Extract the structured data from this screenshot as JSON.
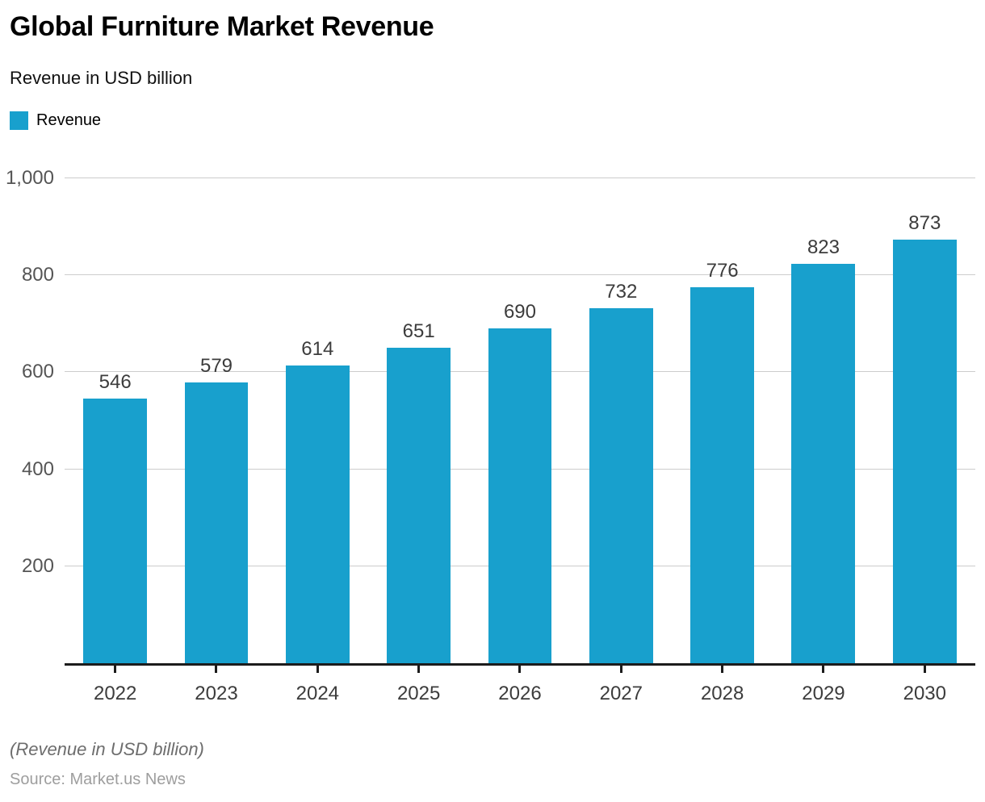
{
  "header": {
    "title": "Global Furniture Market Revenue",
    "subtitle": "Revenue in USD billion"
  },
  "legend": {
    "label": "Revenue",
    "color": "#18a0cd"
  },
  "chart_data": {
    "type": "bar",
    "title": "Global Furniture Market Revenue",
    "subtitle": "Revenue in USD billion",
    "categories": [
      "2022",
      "2023",
      "2024",
      "2025",
      "2026",
      "2027",
      "2028",
      "2029",
      "2030"
    ],
    "series": [
      {
        "name": "Revenue",
        "values": [
          546,
          579,
          614,
          651,
          690,
          732,
          776,
          823,
          873
        ]
      }
    ],
    "xlabel": "",
    "ylabel": "",
    "ylim": [
      0,
      1000
    ],
    "yticks": [
      200,
      400,
      600,
      800,
      1000
    ],
    "ytick_labels": [
      "200",
      "400",
      "600",
      "800",
      "1,000"
    ],
    "grid": true,
    "data_labels": true,
    "legend_position": "top-left",
    "bar_color": "#18a0cd",
    "gridline_color": "#cccccc",
    "axis_color": "#1c1c1c"
  },
  "footer": {
    "note": "(Revenue in USD billion)",
    "source": "Source: Market.us News"
  }
}
